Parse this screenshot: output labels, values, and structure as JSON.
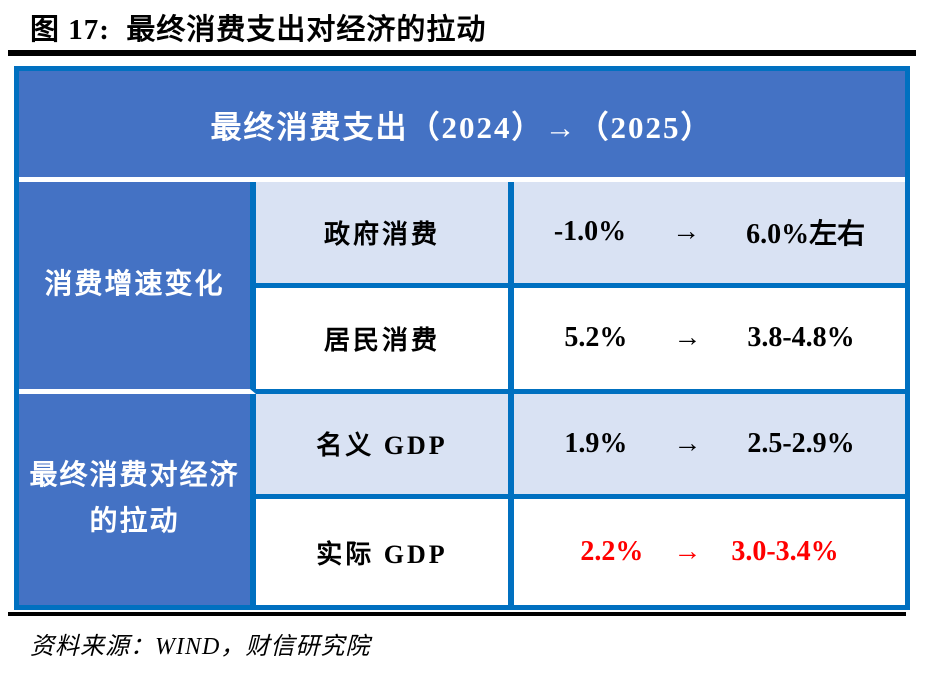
{
  "figure": {
    "title": "图 17:  最终消费支出对经济的拉动",
    "source": "资料来源：WIND，财信研究院"
  },
  "table": {
    "header": "最终消费支出（2024）→（2025）",
    "arrow": "→",
    "groups": [
      {
        "label": "消费增速变化",
        "rows": [
          {
            "label": "政府消费",
            "from": "-1.0%",
            "to": "6.0%左右",
            "emphasis": false
          },
          {
            "label": "居民消费",
            "from": "5.2%",
            "to": "3.8-4.8%",
            "emphasis": false
          }
        ]
      },
      {
        "label": "最终消费对经济的拉动",
        "rows": [
          {
            "label": "名义 GDP",
            "from": "1.9%",
            "to": "2.5-2.9%",
            "emphasis": false
          },
          {
            "label": "实际 GDP",
            "from": "2.2%",
            "to": "3.0-3.4%",
            "emphasis": true
          }
        ]
      }
    ]
  },
  "colors": {
    "header_fill": "#4472C4",
    "border_blue": "#0070C0",
    "band_fill": "#D9E2F3",
    "emphasis_text": "#FF0000"
  }
}
